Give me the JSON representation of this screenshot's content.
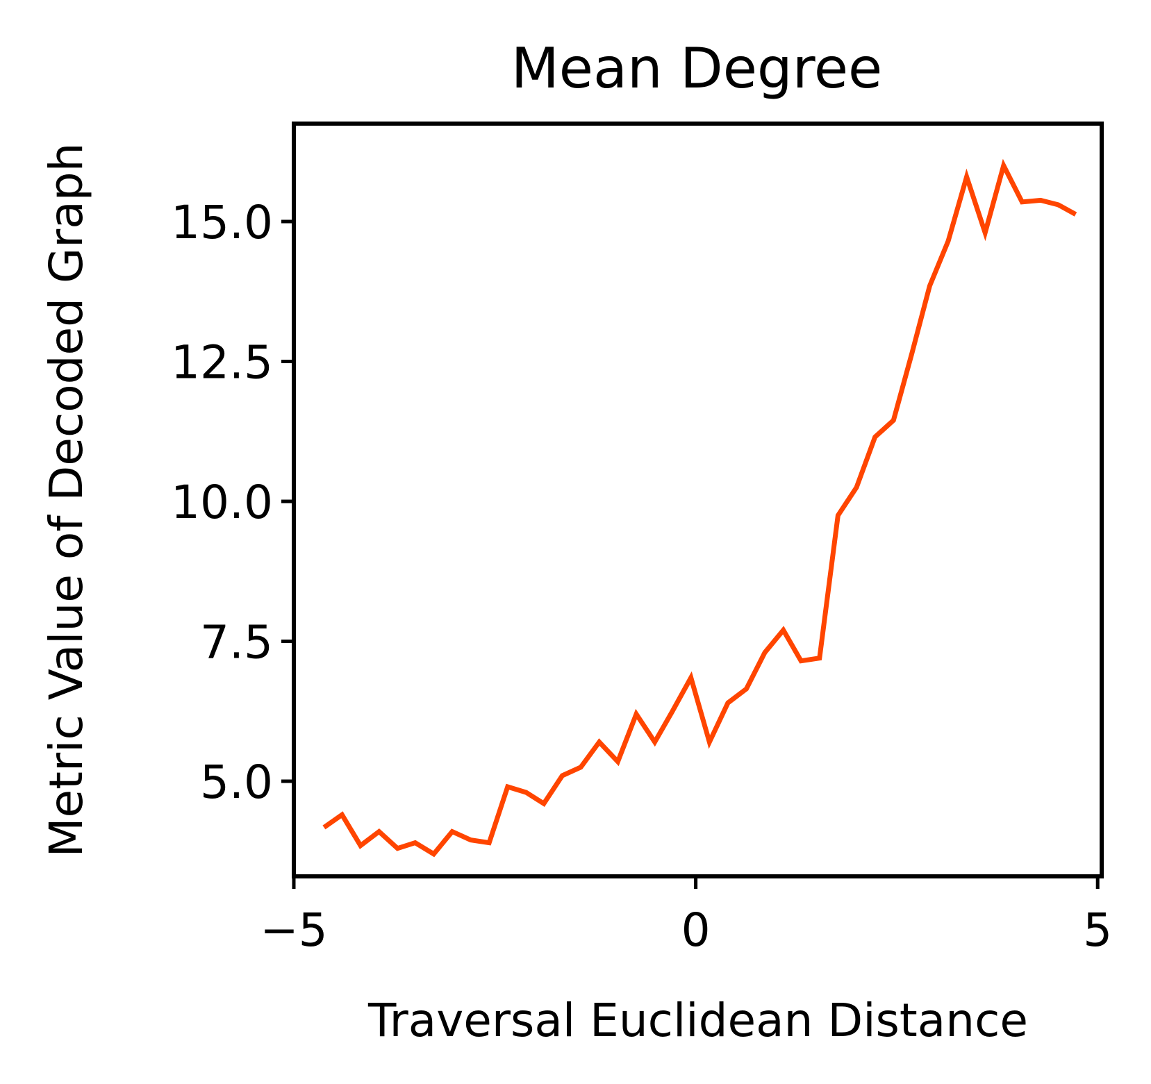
{
  "chart_data": {
    "type": "line",
    "title": "Mean Degree",
    "xlabel": "Traversal Euclidean Distance",
    "ylabel": "Metric Value of Decoded Graph",
    "xlim": [
      -5.0,
      5.05
    ],
    "ylim": [
      3.3,
      16.75
    ],
    "xticks": [
      -5,
      0,
      5
    ],
    "xtick_labels": [
      "−5",
      "0",
      "5"
    ],
    "yticks": [
      5.0,
      7.5,
      10.0,
      12.5,
      15.0
    ],
    "ytick_labels": [
      "5.0",
      "7.5",
      "10.0",
      "12.5",
      "15.0"
    ],
    "grid": false,
    "legend": "none",
    "series": [
      {
        "color": "#ff4500",
        "x": [
          -4.6,
          -4.4,
          -4.17,
          -3.94,
          -3.71,
          -3.49,
          -3.26,
          -3.03,
          -2.8,
          -2.57,
          -2.34,
          -2.11,
          -1.89,
          -1.66,
          -1.43,
          -1.2,
          -0.97,
          -0.74,
          -0.51,
          -0.29,
          -0.06,
          0.17,
          0.4,
          0.63,
          0.86,
          1.09,
          1.31,
          1.54,
          1.77,
          2.0,
          2.23,
          2.46,
          2.69,
          2.91,
          3.14,
          3.37,
          3.6,
          3.83,
          4.06,
          4.29,
          4.51,
          4.7
        ],
        "y": [
          4.2,
          4.4,
          3.85,
          4.1,
          3.8,
          3.9,
          3.7,
          4.1,
          3.95,
          3.9,
          4.9,
          4.8,
          4.6,
          5.1,
          5.25,
          5.7,
          5.35,
          6.2,
          5.7,
          6.25,
          6.85,
          5.7,
          6.4,
          6.65,
          7.3,
          7.7,
          7.15,
          7.2,
          9.75,
          10.25,
          11.15,
          11.45,
          12.65,
          13.85,
          14.65,
          15.8,
          14.8,
          16.0,
          15.35,
          15.38,
          15.3,
          15.15
        ]
      }
    ]
  }
}
